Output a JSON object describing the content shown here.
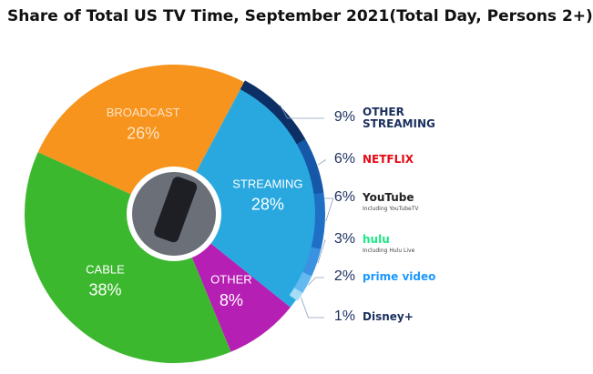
{
  "chart_data": {
    "type": "pie",
    "title": "Share of Total US TV Time, September 2021(Total Day, Persons 2+)",
    "categories": [
      "BROADCAST",
      "STREAMING",
      "OTHER",
      "CABLE"
    ],
    "values": [
      26,
      28,
      8,
      38
    ],
    "value_labels": [
      "26%",
      "28%",
      "8%",
      "38%"
    ],
    "colors": [
      "#f7941d",
      "#29a8e0",
      "#b61fb3",
      "#3cb82e"
    ],
    "breakdown": {
      "categories": [
        "OTHER STREAMING",
        "NETFLIX",
        "YouTube",
        "hulu",
        "prime video",
        "Disney+"
      ],
      "notes": [
        null,
        null,
        "Including YouTubeTV",
        "Including Hulu Live",
        null,
        null
      ],
      "values": [
        9,
        6,
        6,
        3,
        2,
        1
      ],
      "value_labels": [
        "9%",
        "6%",
        "6%",
        "3%",
        "2%",
        "1%"
      ],
      "colors": [
        "#0c2f66",
        "#1657a8",
        "#1f6fc4",
        "#3a92e0",
        "#64baf0",
        "#a5dcf7"
      ],
      "label_colors": [
        "#1b2f5e",
        "#e50914",
        "#222222",
        "#1ce783",
        "#1a98ff",
        "#1b2f5e"
      ]
    }
  }
}
